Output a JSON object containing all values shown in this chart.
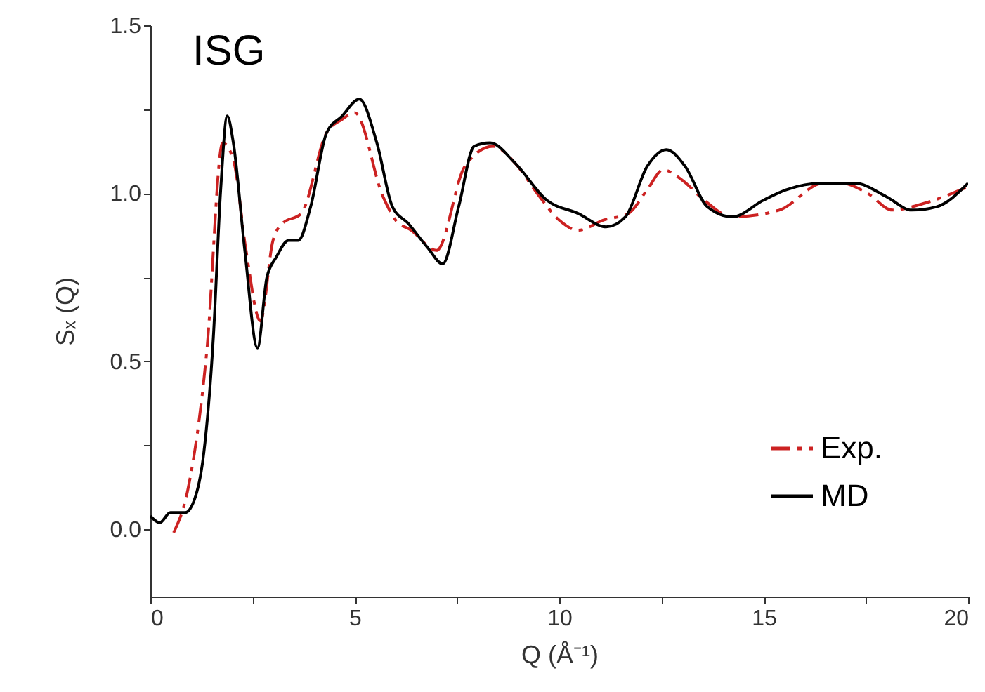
{
  "chart_data": {
    "type": "line",
    "xlabel": "Q (Å⁻¹)",
    "ylabel": "Sₓ (Q)",
    "annotations": [
      "ISG"
    ],
    "xlim": [
      0,
      20
    ],
    "xticks": [
      0,
      {
        "value": 2.5,
        "label": null
      },
      5,
      {
        "value": 7.5,
        "label": null
      },
      10,
      {
        "value": 12.5,
        "label": null
      },
      15,
      {
        "value": 17.5,
        "label": null
      },
      20
    ],
    "ylim": [
      -0.2,
      1.5
    ],
    "yticks": [
      {
        "value": 0,
        "label": "0.0"
      },
      {
        "value": 0.25,
        "label": null
      },
      0.5,
      {
        "value": 0.75,
        "label": null
      },
      {
        "value": 1,
        "label": "1.0"
      },
      {
        "value": 1.25,
        "label": null
      },
      1.5
    ],
    "grid": false,
    "legend": "bottom right",
    "marker": "none",
    "series": [
      {
        "name": "Exp.",
        "color": "#cc2222",
        "line_style": "dashed",
        "x": [
          0.57,
          0.92,
          1.38,
          1.77,
          2.03,
          2.34,
          2.69,
          3.0,
          3.23,
          3.69,
          4.31,
          4.69,
          5.0,
          5.69,
          6.0,
          6.38,
          7.0,
          7.69,
          8.38,
          8.92,
          9.46,
          10.0,
          10.46,
          11.08,
          11.69,
          12.15,
          12.54,
          13.0,
          13.54,
          14.23,
          15.38,
          16.46,
          16.92,
          17.54,
          18.15,
          18.92,
          20.0
        ],
        "values": [
          -0.01,
          0.12,
          0.53,
          1.15,
          1.1,
          0.83,
          0.62,
          0.86,
          0.91,
          0.94,
          1.18,
          1.22,
          1.24,
          0.99,
          0.92,
          0.89,
          0.83,
          1.08,
          1.14,
          1.09,
          1.0,
          0.92,
          0.89,
          0.92,
          0.94,
          1.01,
          1.07,
          1.04,
          0.98,
          0.93,
          0.95,
          1.03,
          1.03,
          1.0,
          0.95,
          0.97,
          1.02
        ]
      },
      {
        "name": "MD",
        "color": "#000000",
        "line_style": "solid",
        "x": [
          0,
          0.23,
          0.49,
          0.85,
          1.11,
          1.31,
          1.54,
          1.72,
          1.88,
          2.03,
          2.31,
          2.62,
          2.85,
          3.08,
          3.38,
          3.62,
          3.92,
          4.31,
          4.69,
          5.11,
          5.54,
          5.92,
          6.31,
          6.77,
          7.15,
          7.54,
          7.92,
          8.31,
          8.92,
          9.69,
          10.46,
          11.15,
          11.62,
          12.15,
          12.62,
          13.08,
          13.62,
          14.23,
          15.0,
          15.54,
          16.46,
          17.23,
          18.0,
          18.62,
          19.23,
          20.0
        ],
        "values": [
          0.04,
          0.02,
          0.05,
          0.05,
          0.1,
          0.23,
          0.57,
          1.01,
          1.23,
          1.15,
          0.83,
          0.54,
          0.75,
          0.81,
          0.86,
          0.86,
          0.96,
          1.18,
          1.23,
          1.28,
          1.15,
          0.96,
          0.91,
          0.84,
          0.79,
          0.96,
          1.14,
          1.15,
          1.09,
          0.98,
          0.94,
          0.9,
          0.93,
          1.08,
          1.13,
          1.08,
          0.96,
          0.93,
          0.98,
          1.01,
          1.03,
          1.03,
          0.99,
          0.95,
          0.96,
          1.03
        ]
      }
    ]
  }
}
